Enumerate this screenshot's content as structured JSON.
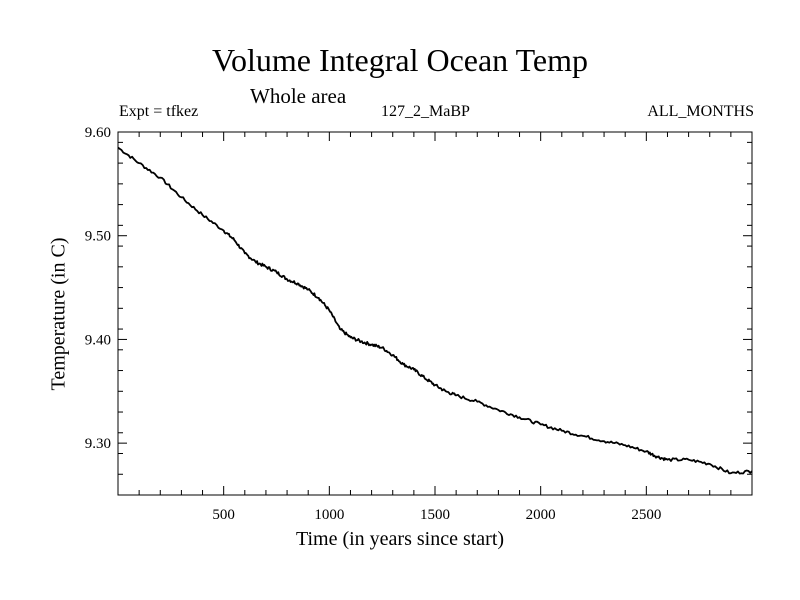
{
  "header": {
    "title": "Volume Integral Ocean Temp",
    "subtitle": "Whole area",
    "expt": "Expt = tfkez",
    "run": "127_2_MaBP",
    "period": "ALL_MONTHS"
  },
  "chart_data": {
    "type": "line",
    "title": "Volume Integral Ocean Temp",
    "xlabel": "Time (in years since start)",
    "ylabel": "Temperature (in C)",
    "xlim": [
      0,
      3000
    ],
    "ylim": [
      9.25,
      9.6
    ],
    "xticks": [
      500,
      1000,
      1500,
      2000,
      2500
    ],
    "xtick_labels": [
      "500",
      "1000",
      "1500",
      "2000",
      "2500"
    ],
    "yticks": [
      9.3,
      9.4,
      9.5,
      9.6
    ],
    "ytick_labels": [
      "9.30",
      "9.40",
      "9.50",
      "9.60"
    ],
    "grid": false,
    "series": [
      {
        "color": "#000000",
        "x": [
          0,
          100,
          200,
          300,
          400,
          500,
          550,
          600,
          650,
          700,
          750,
          800,
          850,
          900,
          950,
          1000,
          1050,
          1100,
          1150,
          1200,
          1250,
          1300,
          1350,
          1400,
          1450,
          1500,
          1550,
          1600,
          1700,
          1800,
          1900,
          2000,
          2100,
          2200,
          2300,
          2400,
          2500,
          2550,
          2600,
          2700,
          2800,
          2900,
          3000
        ],
        "y": [
          9.585,
          9.57,
          9.556,
          9.537,
          9.52,
          9.505,
          9.496,
          9.483,
          9.475,
          9.47,
          9.465,
          9.458,
          9.454,
          9.448,
          9.44,
          9.428,
          9.41,
          9.402,
          9.398,
          9.395,
          9.392,
          9.385,
          9.376,
          9.371,
          9.363,
          9.356,
          9.35,
          9.346,
          9.34,
          9.332,
          9.325,
          9.318,
          9.312,
          9.307,
          9.302,
          9.298,
          9.292,
          9.287,
          9.284,
          9.284,
          9.28,
          9.271,
          9.273
        ]
      }
    ]
  }
}
